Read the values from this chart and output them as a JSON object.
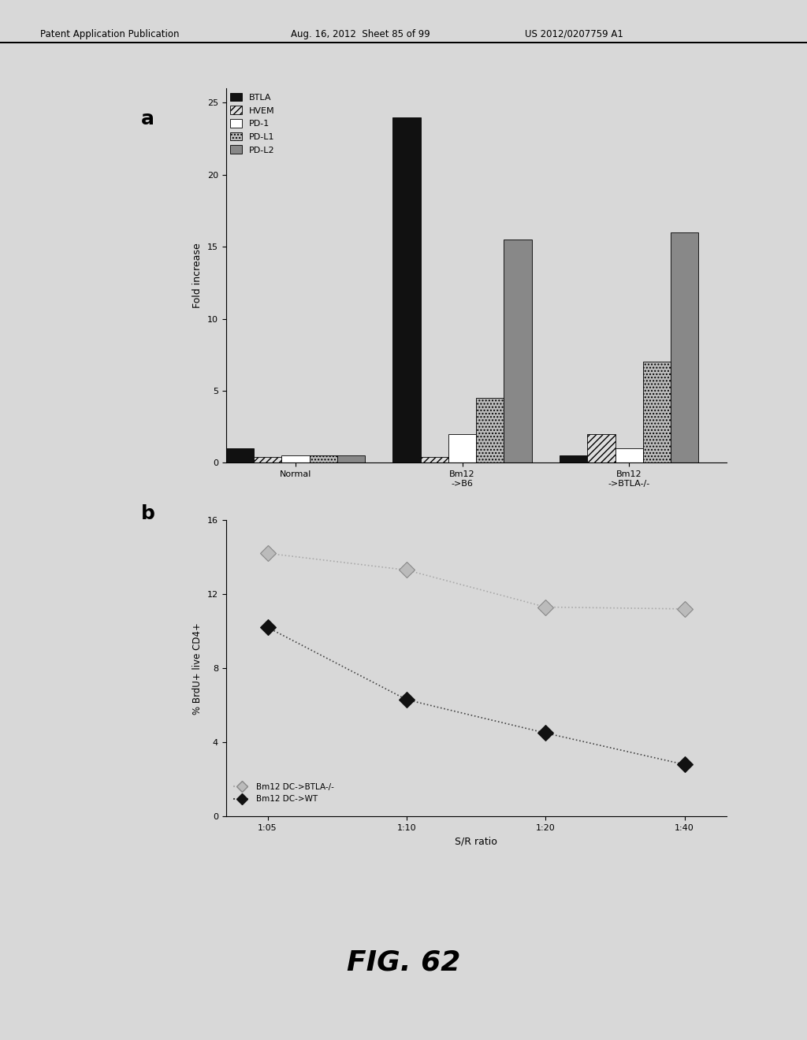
{
  "panel_a": {
    "groups": [
      "Normal",
      "Bm12\n->B6",
      "Bm12\n->BTLA-/-"
    ],
    "series": [
      "BTLA",
      "HVEM",
      "PD-1",
      "PD-L1",
      "PD-L2"
    ],
    "values": [
      [
        1.0,
        0.4,
        0.5,
        0.5,
        0.5
      ],
      [
        24.0,
        0.4,
        2.0,
        4.5,
        15.5
      ],
      [
        0.5,
        2.0,
        1.0,
        7.0,
        16.0
      ]
    ],
    "colors": [
      "#111111",
      "#dddddd",
      "#ffffff",
      "#bbbbbb",
      "#888888"
    ],
    "hatches": [
      "",
      "////",
      "",
      "....",
      ""
    ],
    "ylabel": "Fold increase",
    "ylim": [
      0,
      26
    ],
    "yticks": [
      0,
      5,
      10,
      15,
      20,
      25
    ]
  },
  "panel_b": {
    "x_labels": [
      "1:05",
      "1:10",
      "1:20",
      "1:40"
    ],
    "x_values": [
      0,
      1,
      2,
      3
    ],
    "series1_label": "Bm12 DC->BTLA-/-",
    "series1_values": [
      14.2,
      13.3,
      11.3,
      11.2
    ],
    "series2_label": "Bm12 DC->WT",
    "series2_values": [
      10.2,
      6.3,
      4.5,
      2.8
    ],
    "ylabel": "% BrdU+ live CD4+",
    "xlabel": "S/R ratio",
    "ylim": [
      0,
      16
    ],
    "yticks": [
      0,
      4,
      8,
      12,
      16
    ]
  },
  "fig_label": "FIG. 62",
  "header_left": "Patent Application Publication",
  "header_mid": "Aug. 16, 2012  Sheet 85 of 99",
  "header_right": "US 2012/0207759 A1",
  "background_color": "#d8d8d8"
}
